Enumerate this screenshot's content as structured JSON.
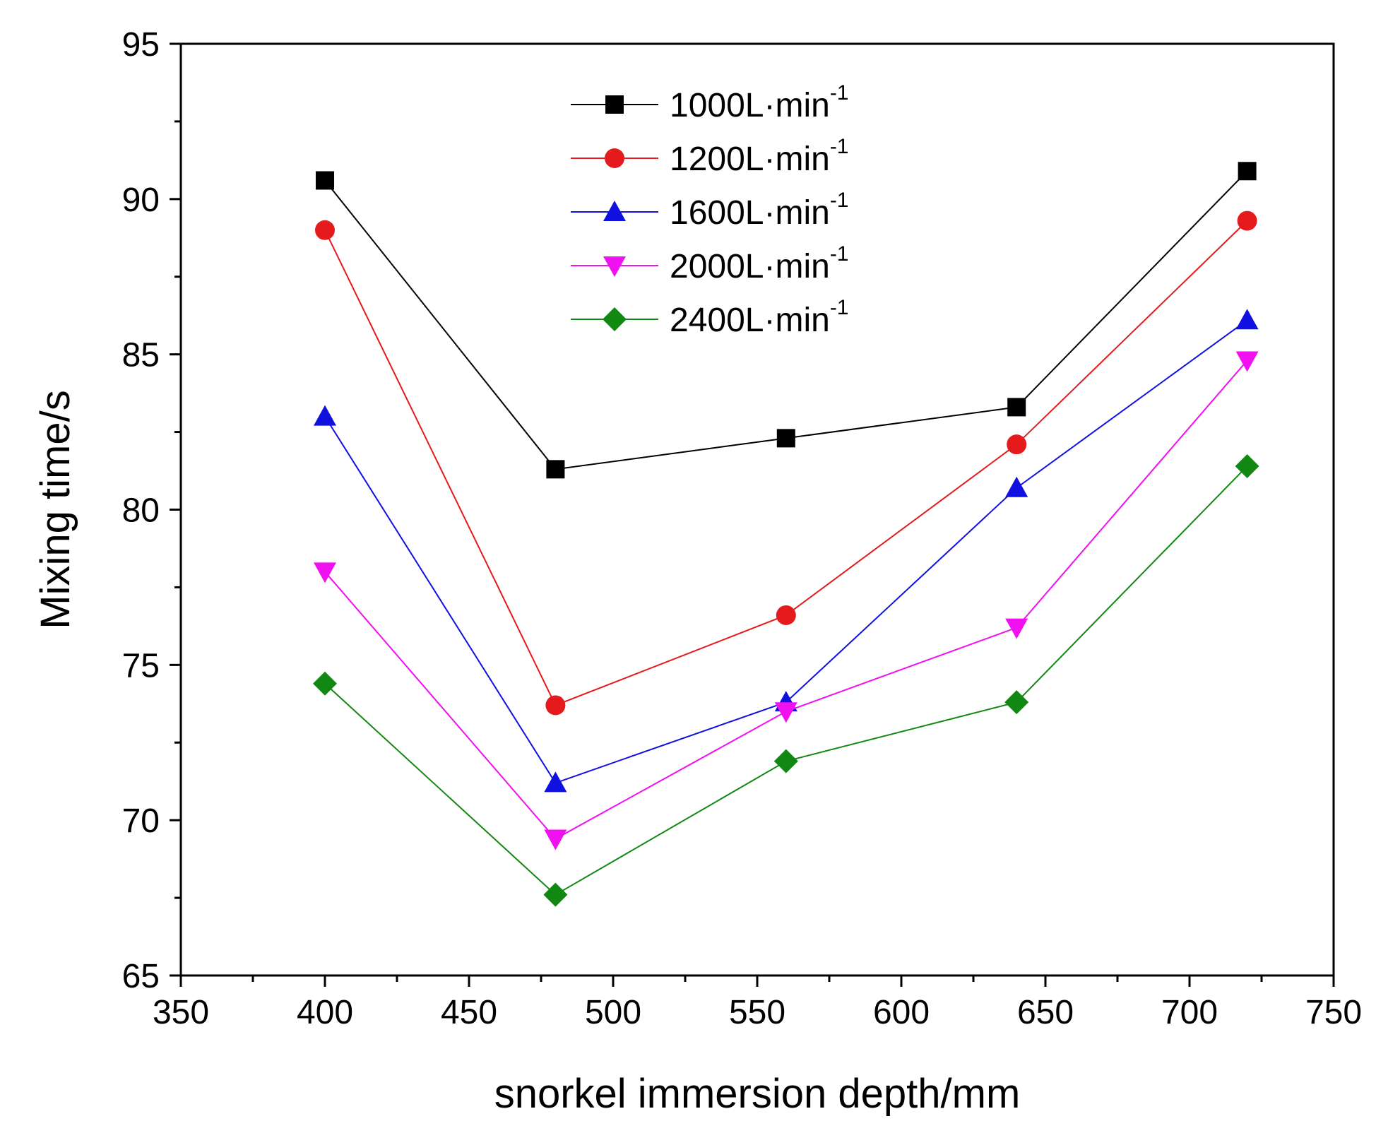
{
  "chart_data": {
    "type": "line",
    "title": "",
    "xlabel": "snorkel immersion depth/mm",
    "ylabel": "Mixing time/s",
    "xlim": [
      350,
      750
    ],
    "ylim": [
      65,
      95
    ],
    "xticks": [
      350,
      400,
      450,
      500,
      550,
      600,
      650,
      700,
      750
    ],
    "yticks": [
      65,
      70,
      75,
      80,
      85,
      90,
      95
    ],
    "grid": false,
    "legend_position": "top-center",
    "x": [
      400,
      480,
      560,
      640,
      720
    ],
    "series": [
      {
        "name": "1000L·min",
        "sup": "-1",
        "color": "#000000",
        "marker": "square",
        "values": [
          90.6,
          81.3,
          82.3,
          83.3,
          90.9
        ]
      },
      {
        "name": "1200L·min",
        "sup": "-1",
        "color": "#e41a1c",
        "marker": "circle",
        "values": [
          89.0,
          73.7,
          76.6,
          82.1,
          89.3
        ]
      },
      {
        "name": "1600L·min",
        "sup": "-1",
        "color": "#1010e0",
        "marker": "triangle-up",
        "values": [
          83.0,
          71.2,
          73.8,
          80.7,
          86.1
        ]
      },
      {
        "name": "2000L·min",
        "sup": "-1",
        "color": "#f010f0",
        "marker": "triangle-down",
        "values": [
          78.0,
          69.4,
          73.5,
          76.2,
          84.8
        ]
      },
      {
        "name": "2400L·min",
        "sup": "-1",
        "color": "#118811",
        "marker": "diamond",
        "values": [
          74.4,
          67.6,
          71.9,
          73.8,
          81.4
        ]
      }
    ]
  }
}
